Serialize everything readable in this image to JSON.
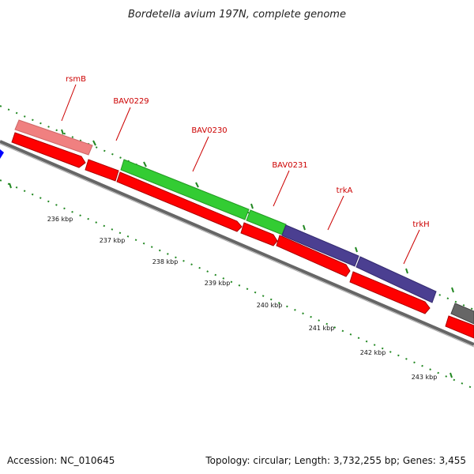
{
  "title": "Bordetella avium 197N, complete genome",
  "accession": "Accession: NC_010645",
  "topology": "Topology: circular; Length: 3,732,255 bp; Genes: 3,455",
  "colors": {
    "forward_cds": "#ff0000",
    "rrna_like": "#f08080",
    "green_feature": "#33cc33",
    "purple_feature": "#4b3f91",
    "blue_feature": "#0000ff",
    "gray_feature": "#666666",
    "backbone": "#888888",
    "tick": "#228822",
    "label": "#cc0000"
  },
  "gene_labels": [
    "rsmB",
    "BAV0229",
    "BAV0230",
    "BAV0231",
    "trkA",
    "trkH"
  ],
  "tick_labels": [
    "236 kbp",
    "237 kbp",
    "238 kbp",
    "239 kbp",
    "240 kbp",
    "241 kbp",
    "242 kbp",
    "243 kbp"
  ]
}
